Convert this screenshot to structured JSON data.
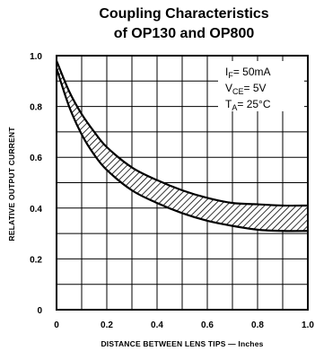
{
  "chart_data": {
    "type": "area",
    "title_line1": "Coupling Characteristics",
    "title_line2": "of OP130 and OP800",
    "xlabel": "DISTANCE BETWEEN LENS TIPS — Inches",
    "ylabel": "RELATIVE OUTPUT CURRENT",
    "xlim": [
      0,
      1.0
    ],
    "ylim": [
      0,
      1.0
    ],
    "x_ticks": [
      "0",
      "0.2",
      "0.4",
      "0.6",
      "0.8",
      "1.0"
    ],
    "y_ticks": [
      "0",
      "0.2",
      "0.4",
      "0.6",
      "0.8",
      "1.0"
    ],
    "grid": true,
    "annotations": {
      "if_main": "I",
      "if_sub": "F",
      "if_val": "= 50mA",
      "vce_main": "V",
      "vce_sub": "CE",
      "vce_val": "= 5V",
      "ta_main": "T",
      "ta_sub": "A",
      "ta_val": "= 25°C"
    },
    "series": [
      {
        "name": "upper",
        "x": [
          0,
          0.05,
          0.1,
          0.15,
          0.2,
          0.3,
          0.4,
          0.5,
          0.6,
          0.7,
          0.8,
          0.9,
          1.0
        ],
        "y": [
          0.98,
          0.86,
          0.77,
          0.7,
          0.64,
          0.56,
          0.51,
          0.47,
          0.44,
          0.42,
          0.415,
          0.41,
          0.41
        ]
      },
      {
        "name": "lower",
        "x": [
          0,
          0.05,
          0.1,
          0.15,
          0.2,
          0.3,
          0.4,
          0.5,
          0.6,
          0.7,
          0.8,
          0.9,
          1.0
        ],
        "y": [
          0.95,
          0.8,
          0.69,
          0.61,
          0.55,
          0.47,
          0.42,
          0.38,
          0.35,
          0.33,
          0.315,
          0.31,
          0.31
        ]
      }
    ],
    "colors": {
      "ink": "#000000",
      "background": "#ffffff"
    }
  }
}
